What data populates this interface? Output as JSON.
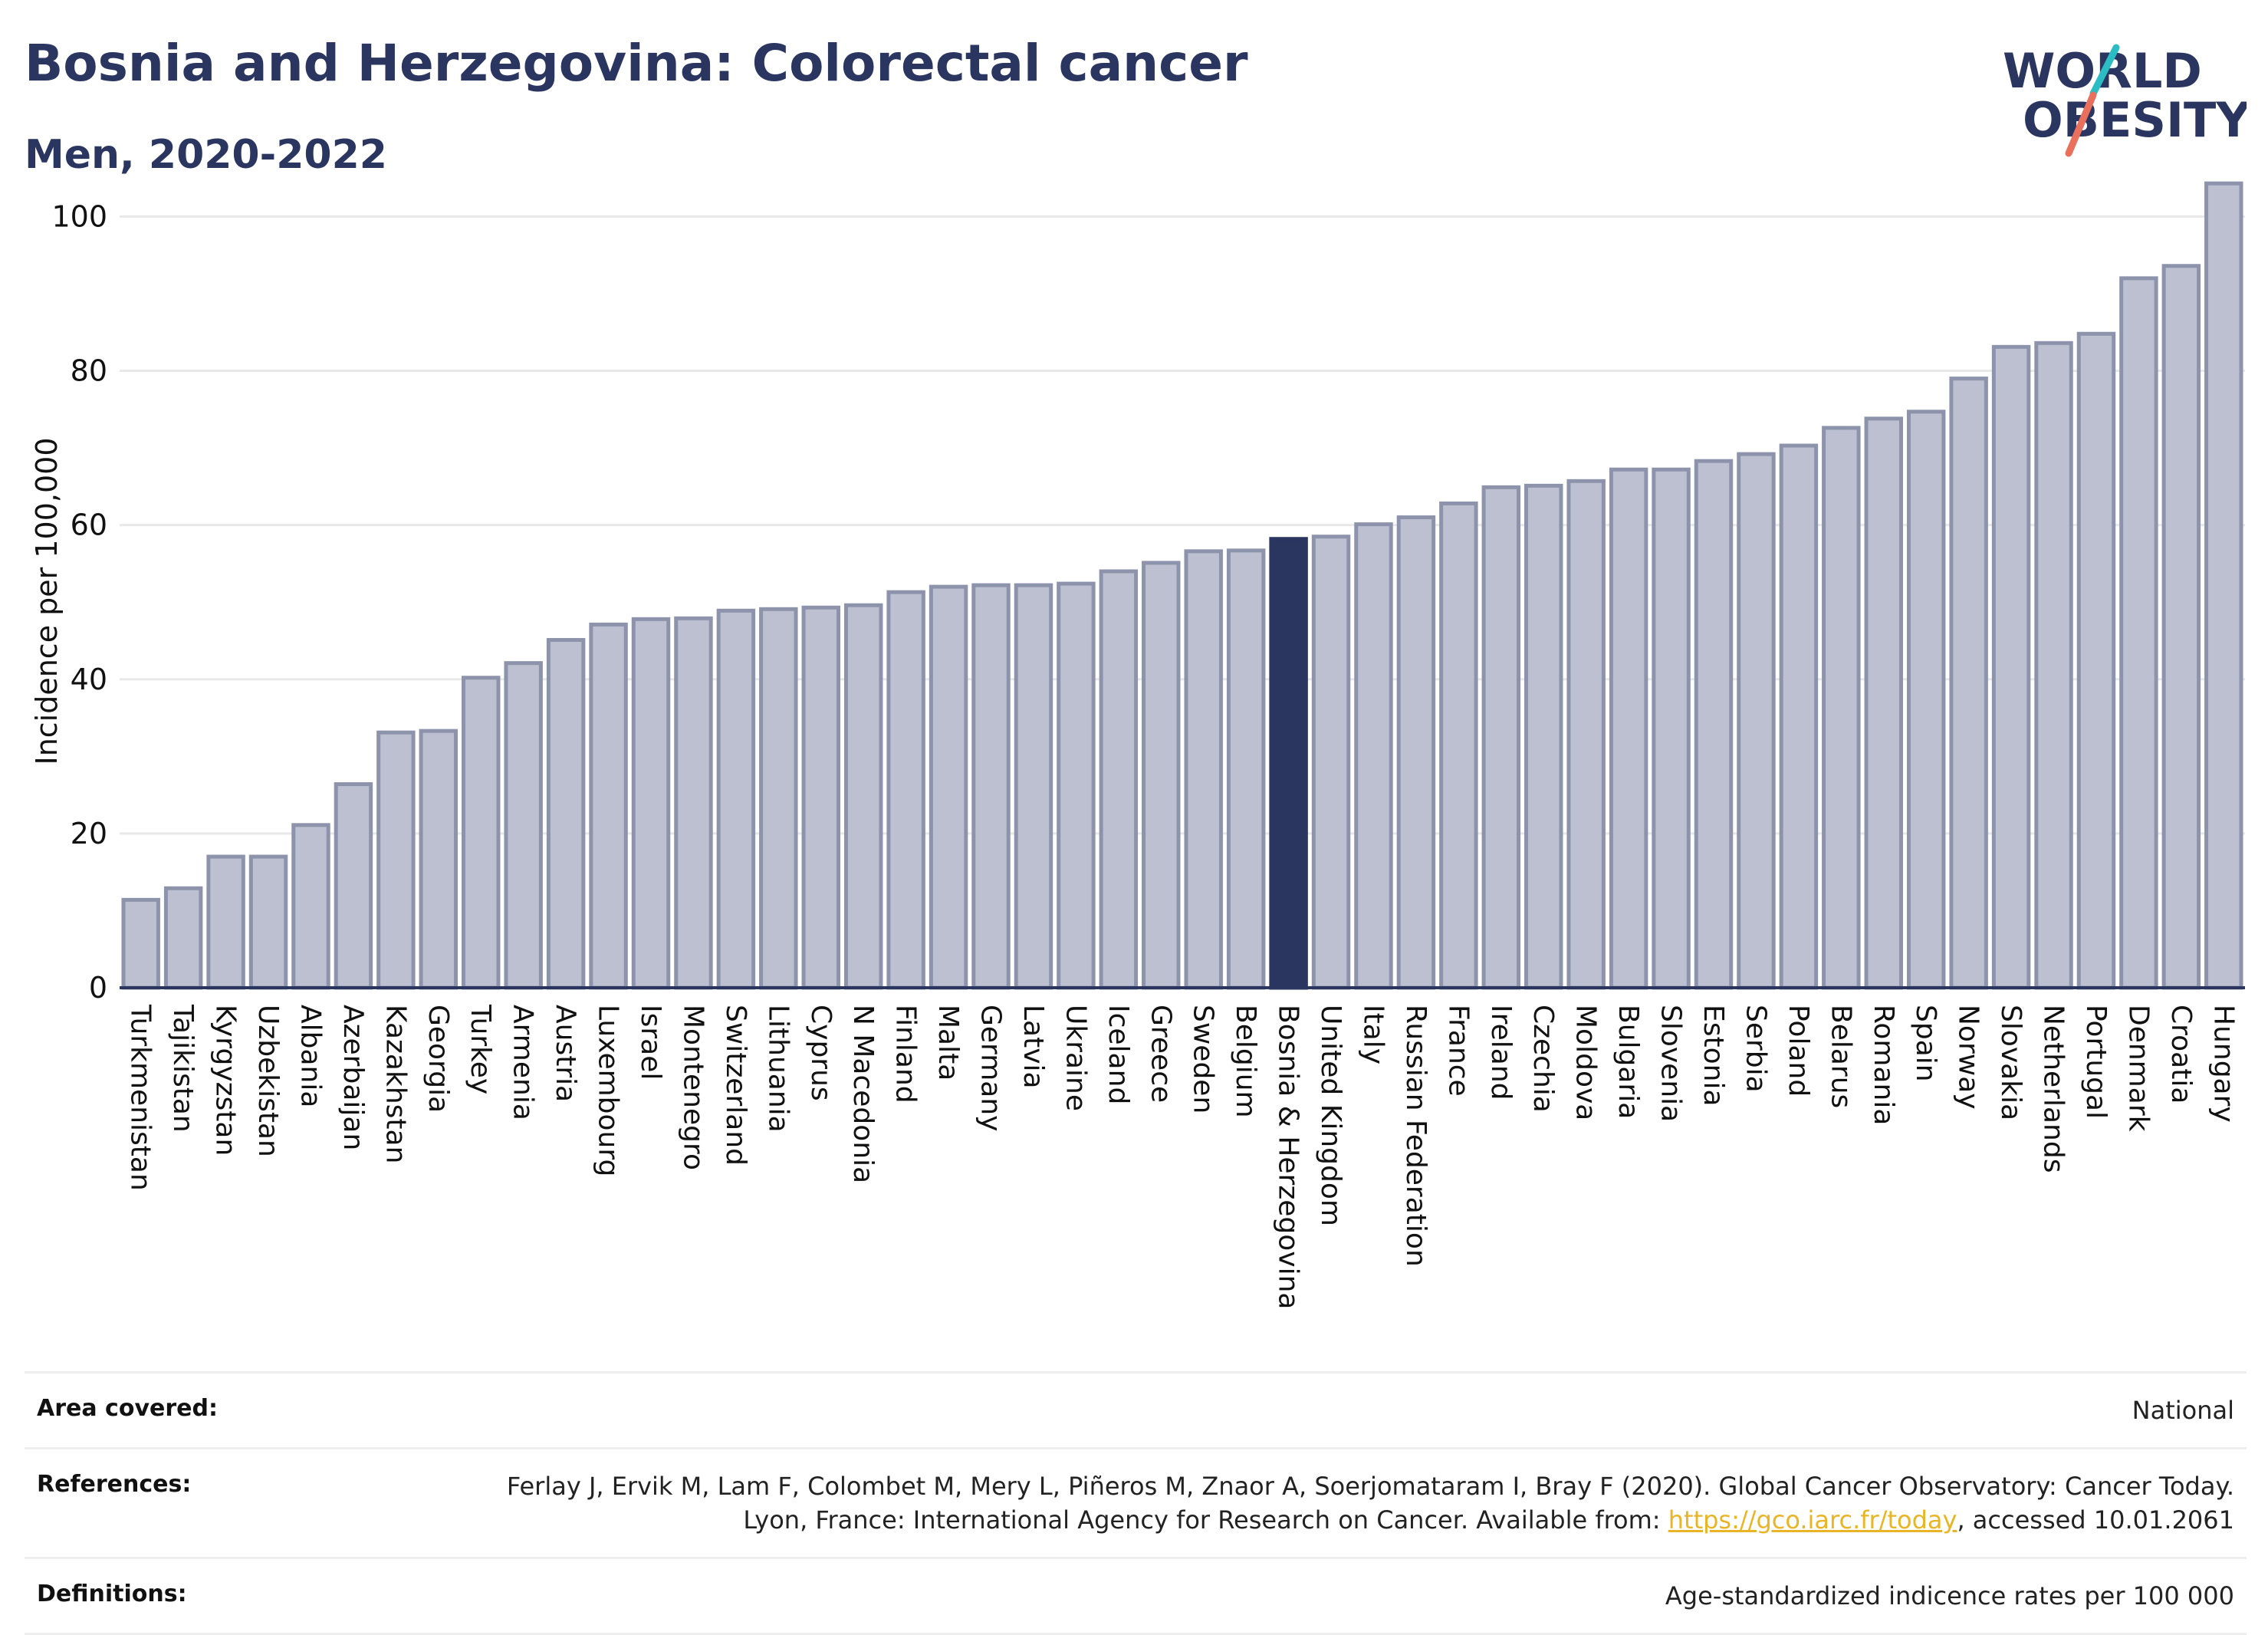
{
  "header": {
    "title": "Bosnia and Herzegovina: Colorectal cancer",
    "subtitle": "Men, 2020-2022"
  },
  "logo": {
    "line1": "WORLD",
    "line2": "OBESITY",
    "accent_colors": [
      "#2bbcc4",
      "#e8705c"
    ]
  },
  "colors": {
    "bar": "#bcc0d0",
    "bar_outline": "#8e93ac",
    "highlight": "#2a3560",
    "grid": "#e8e8e8",
    "text": "#2a3560"
  },
  "chart_data": {
    "type": "bar",
    "title": "Bosnia and Herzegovina: Colorectal cancer",
    "subtitle": "Men, 2020-2022",
    "ylabel": "Incidence per 100,000",
    "xlabel": "",
    "ylim": [
      0,
      107
    ],
    "yticks": [
      0,
      20,
      40,
      60,
      80,
      100
    ],
    "grid": true,
    "highlight": "Bosnia & Herzegovina",
    "categories": [
      "Turkmenistan",
      "Tajikistan",
      "Kyrgyzstan",
      "Uzbekistan",
      "Albania",
      "Azerbaijan",
      "Kazakhstan",
      "Georgia",
      "Turkey",
      "Armenia",
      "Austria",
      "Luxembourg",
      "Israel",
      "Montenegro",
      "Switzerland",
      "Lithuania",
      "Cyprus",
      "N Macedonia",
      "Finland",
      "Malta",
      "Germany",
      "Latvia",
      "Ukraine",
      "Iceland",
      "Greece",
      "Sweden",
      "Belgium",
      "Bosnia & Herzegovina",
      "United Kingdom",
      "Italy",
      "Russian Federation",
      "France",
      "Ireland",
      "Czechia",
      "Moldova",
      "Bulgaria",
      "Slovenia",
      "Estonia",
      "Serbia",
      "Poland",
      "Belarus",
      "Romania",
      "Spain",
      "Norway",
      "Slovakia",
      "Netherlands",
      "Portugal",
      "Denmark",
      "Croatia",
      "Hungary"
    ],
    "values": [
      11.4,
      12.9,
      17.0,
      17.0,
      21.1,
      26.4,
      33.1,
      33.3,
      40.2,
      42.1,
      45.1,
      47.1,
      47.8,
      47.9,
      48.9,
      49.1,
      49.3,
      49.6,
      51.3,
      52.0,
      52.2,
      52.2,
      52.4,
      54.0,
      55.1,
      56.6,
      56.7,
      58.2,
      58.5,
      60.1,
      61.0,
      62.8,
      64.9,
      65.1,
      65.7,
      67.2,
      67.2,
      68.3,
      69.2,
      70.3,
      72.6,
      73.8,
      74.7,
      79.0,
      83.1,
      83.6,
      84.8,
      92.0,
      93.6,
      104.3
    ]
  },
  "meta": {
    "area_label": "Area covered:",
    "area_value": "National",
    "ref_label": "References:",
    "ref_text_1": "Ferlay J, Ervik M, Lam F, Colombet M, Mery L, Piñeros M, Znaor A, Soerjomataram I, Bray F (2020). Global Cancer Observatory: Cancer Today. Lyon, France: International Agency for Research on Cancer. Available from: ",
    "ref_link": "https://gco.iarc.fr/today",
    "ref_text_2": ", accessed 10.01.2061",
    "def_label": "Definitions:",
    "def_value": "Age-standardized indicence rates per 100 000"
  }
}
